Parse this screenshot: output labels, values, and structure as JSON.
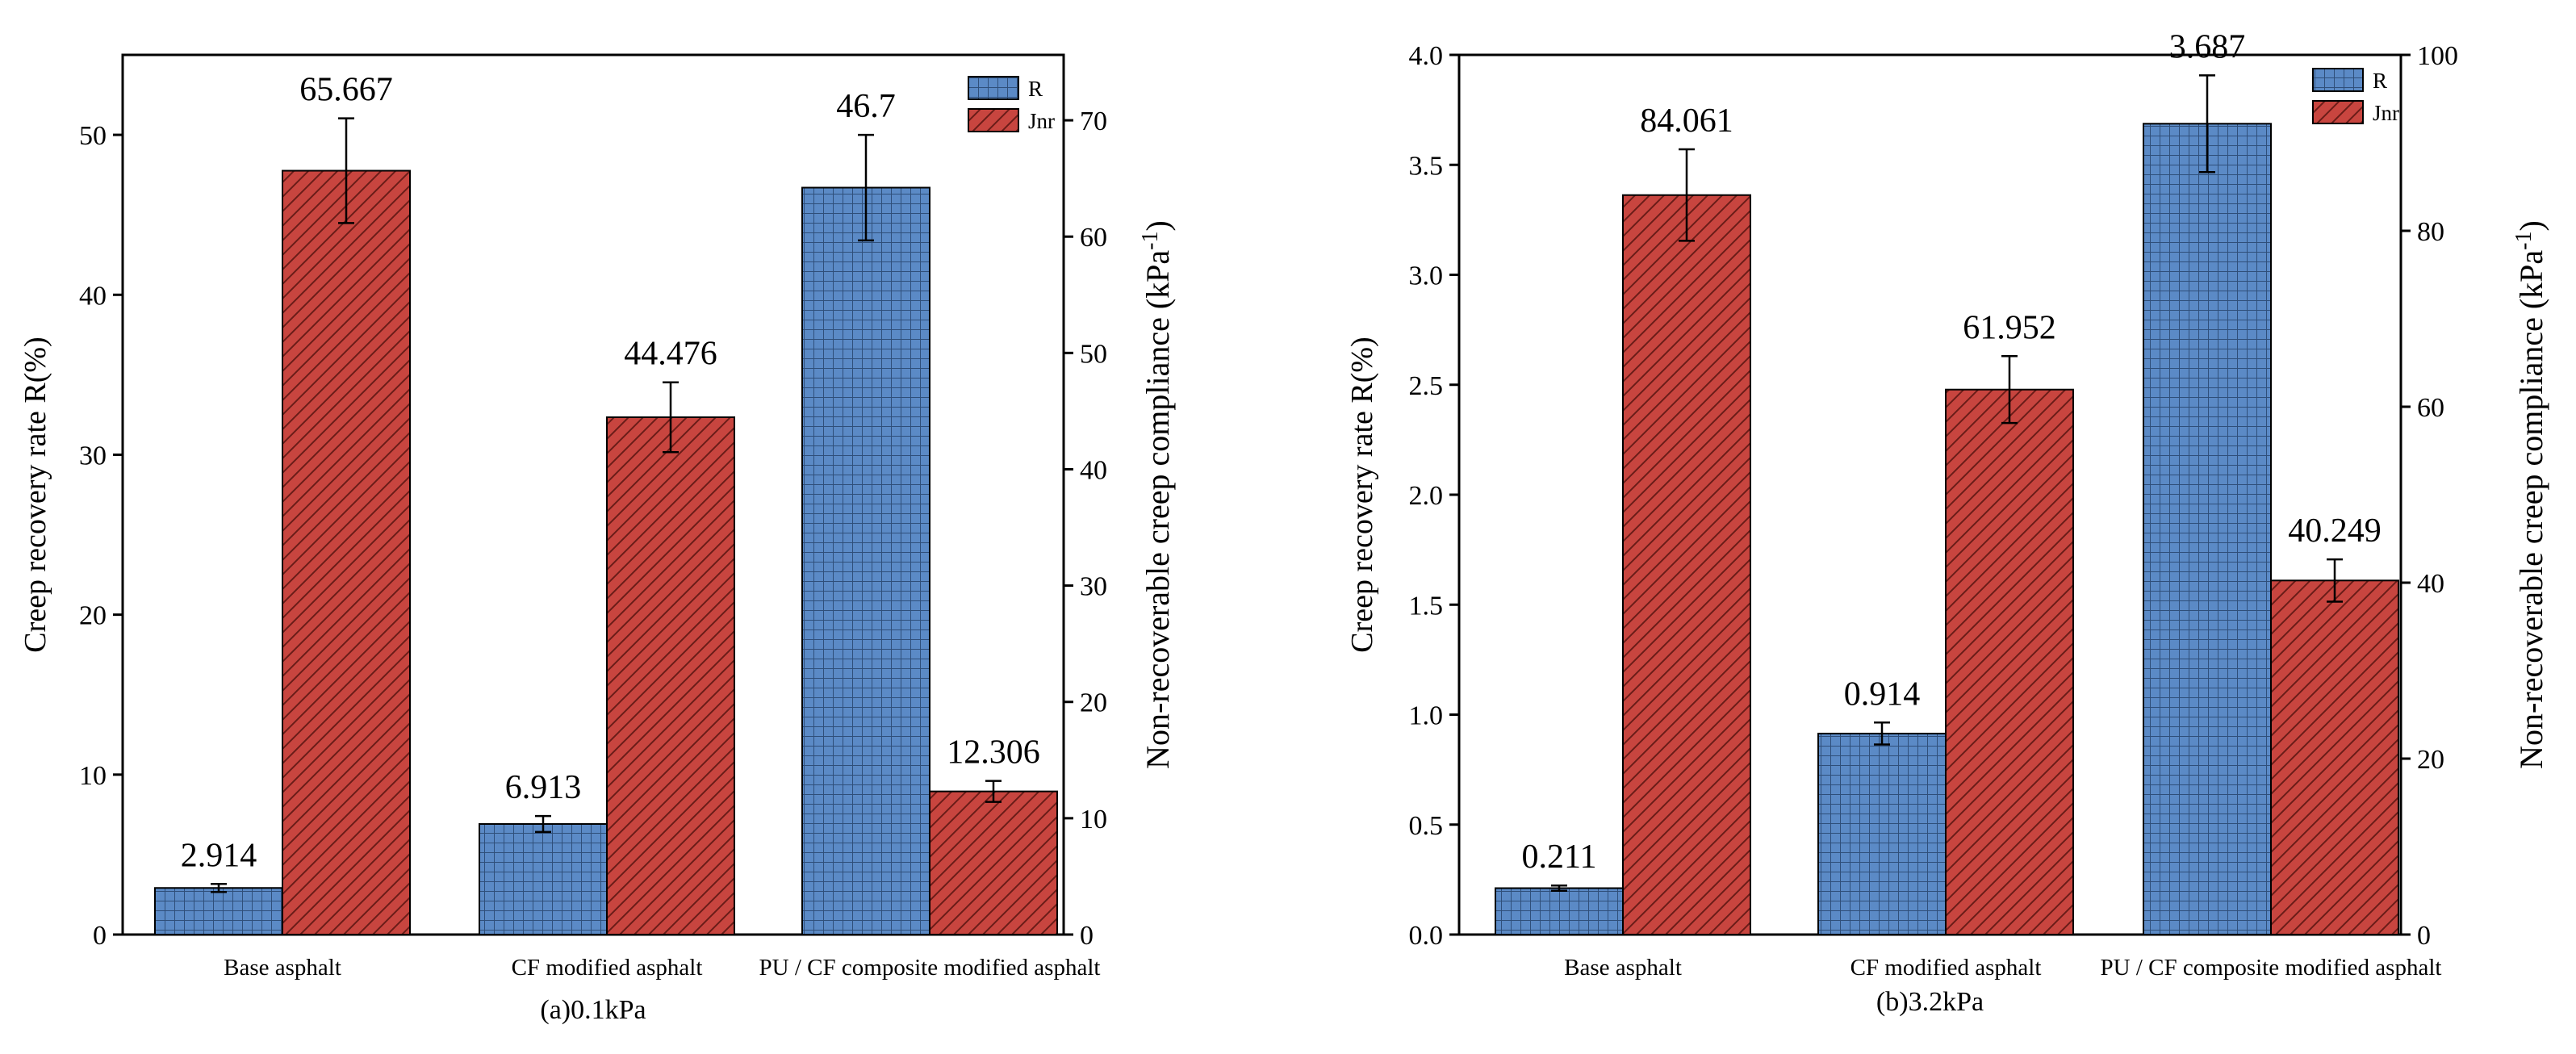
{
  "colors": {
    "R": "#5b8ac6",
    "Jnr": "#c8453f",
    "grid_R": "#2f4f7a",
    "hatch_Jnr": "#6a1c18"
  },
  "chart_data": [
    {
      "type": "bar",
      "caption": "(a)0.1kPa",
      "categories": [
        "Base asphalt",
        "CF modified asphalt",
        "PU / CF composite modified asphalt"
      ],
      "ylabel_left": "Creep recovery rate R(%)",
      "ylabel_right_main": "Non-recoverable creep compliance (kPa",
      "ylabel_right_sup": "-1",
      "ylabel_right_end": ")",
      "ylim_left": [
        0,
        55
      ],
      "ylim_right": [
        0,
        75.625
      ],
      "yticks_left": [
        0,
        10,
        20,
        30,
        40,
        50
      ],
      "ytick_labels_left": [
        "0",
        "10",
        "20",
        "30",
        "40",
        "50"
      ],
      "yticks_right": [
        0,
        10,
        20,
        30,
        40,
        50,
        60,
        70
      ],
      "ytick_labels_right": [
        "0",
        "10",
        "20",
        "30",
        "40",
        "50",
        "60",
        "70"
      ],
      "legend": [
        "R",
        "Jnr"
      ],
      "series": [
        {
          "name": "R",
          "axis": "left",
          "values": [
            2.914,
            6.913,
            46.7
          ],
          "labels": [
            "2.914",
            "6.913",
            "46.7"
          ],
          "errors": [
            0.25,
            0.5,
            3.3
          ]
        },
        {
          "name": "Jnr",
          "axis": "right",
          "values": [
            65.667,
            44.476,
            12.306
          ],
          "labels": [
            "65.667",
            "44.476",
            "12.306"
          ],
          "errors": [
            4.5,
            3.0,
            0.9
          ]
        }
      ]
    },
    {
      "type": "bar",
      "caption": "(b)3.2kPa",
      "categories": [
        "Base asphalt",
        "CF modified asphalt",
        "PU / CF composite modified asphalt"
      ],
      "ylabel_left": "Creep recovery rate R(%)",
      "ylabel_right_main": "Non-recoverable creep compliance (kPa",
      "ylabel_right_sup": "-1",
      "ylabel_right_end": ")",
      "ylim_left": [
        0,
        4.0
      ],
      "ylim_right": [
        0,
        100
      ],
      "yticks_left": [
        0,
        0.5,
        1.0,
        1.5,
        2.0,
        2.5,
        3.0,
        3.5,
        4.0
      ],
      "ytick_labels_left": [
        "0.0",
        "0.5",
        "1.0",
        "1.5",
        "2.0",
        "2.5",
        "3.0",
        "3.5",
        "4.0"
      ],
      "yticks_right": [
        0,
        20,
        40,
        60,
        80,
        100
      ],
      "ytick_labels_right": [
        "0",
        "20",
        "40",
        "60",
        "80",
        "100"
      ],
      "legend": [
        "R",
        "Jnr"
      ],
      "series": [
        {
          "name": "R",
          "axis": "left",
          "values": [
            0.211,
            0.914,
            3.687
          ],
          "labels": [
            "0.211",
            "0.914",
            "3.687"
          ],
          "errors": [
            0.012,
            0.05,
            0.22
          ]
        },
        {
          "name": "Jnr",
          "axis": "right",
          "values": [
            84.061,
            61.952,
            40.249
          ],
          "labels": [
            "84.061",
            "61.952",
            "40.249"
          ],
          "errors": [
            5.2,
            3.8,
            2.4
          ]
        }
      ]
    }
  ]
}
